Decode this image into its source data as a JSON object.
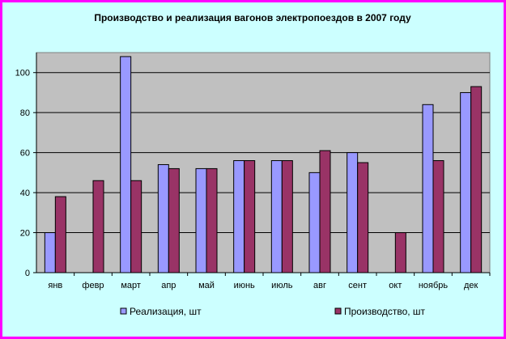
{
  "chart_data": {
    "type": "bar",
    "title": "Производство и реализация вагонов электропоездов в 2007 году",
    "xlabel": "",
    "ylabel": "",
    "categories": [
      "янв",
      "февр",
      "март",
      "апр",
      "май",
      "июнь",
      "июль",
      "авг",
      "сент",
      "окт",
      "ноябрь",
      "дек"
    ],
    "series": [
      {
        "name": "Реализация, шт",
        "color": "#9999ff",
        "values": [
          20,
          0,
          108,
          54,
          52,
          56,
          56,
          50,
          60,
          0,
          84,
          90
        ]
      },
      {
        "name": "Производство, шт",
        "color": "#993366",
        "values": [
          38,
          46,
          46,
          52,
          52,
          56,
          56,
          61,
          55,
          20,
          56,
          93
        ]
      }
    ],
    "ylim": [
      0,
      110
    ],
    "yticks": [
      0,
      20,
      40,
      60,
      80,
      100
    ],
    "grid": true,
    "legend_position": "bottom",
    "plot_background": "#c0c0c0",
    "frame_background": "#ccffff",
    "frame_border": "#ff00ff"
  }
}
